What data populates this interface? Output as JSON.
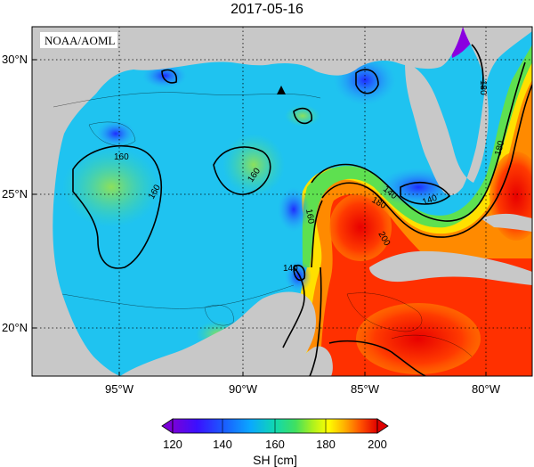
{
  "title": "2017-05-16",
  "credit": "NOAA/AOML",
  "map": {
    "variable": "SH",
    "units": "cm",
    "colorbar_label": "SH [cm]",
    "colorbar_ticks": [
      "120",
      "140",
      "160",
      "180",
      "200"
    ],
    "lat_labels": [
      "30°N",
      "25°N",
      "20°N"
    ],
    "lon_labels": [
      "95°W",
      "90°W",
      "85°W",
      "80°W"
    ],
    "contour_labels": [
      "160",
      "160",
      "160",
      "160",
      "140",
      "180",
      "180",
      "140",
      "180",
      "200",
      "140"
    ],
    "colors": {
      "land": "#c8c8c8",
      "low": "#9a00ff",
      "high": "#e00000"
    },
    "marker": "triangle"
  }
}
